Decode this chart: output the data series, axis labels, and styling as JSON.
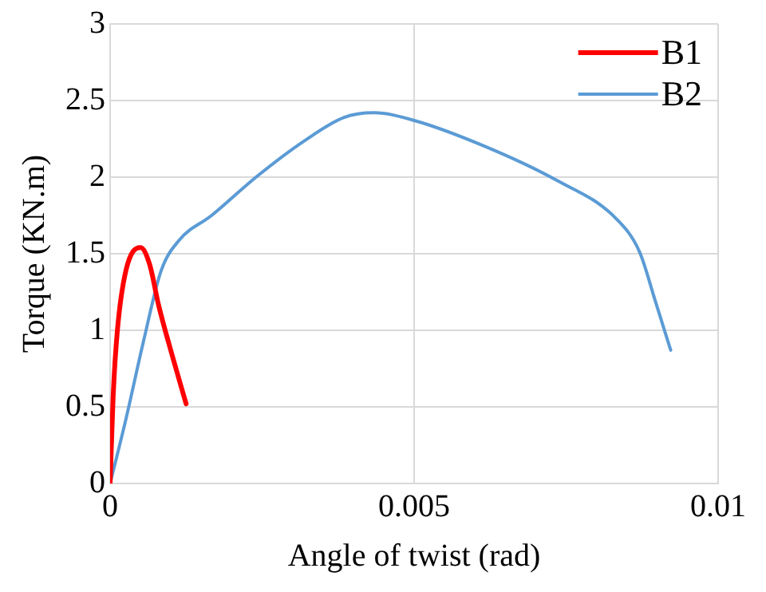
{
  "chart_data": {
    "type": "line",
    "xlabel": "Angle of twist (rad)",
    "ylabel": "Torque (KN.m)",
    "xlim": [
      0,
      0.01
    ],
    "xticks": [
      0,
      0.005,
      0.01
    ],
    "ylim": [
      0,
      3
    ],
    "yticks": [
      0,
      0.5,
      1,
      1.5,
      2,
      2.5,
      3
    ],
    "grid": true,
    "legend": "top right",
    "marker": "none",
    "line_style": "solid",
    "series": [
      {
        "name": "B1",
        "color": "#ff0000",
        "x": [
          0,
          5e-05,
          0.00012,
          0.00026,
          0.0005,
          0.00065,
          0.0008,
          0.00104,
          0.00125
        ],
        "values": [
          0,
          0.57,
          1.0,
          1.39,
          1.54,
          1.43,
          1.16,
          0.81,
          0.52
        ]
      },
      {
        "name": "B2",
        "color": "#5b9bd5",
        "x": [
          0,
          0.00026,
          0.00055,
          0.00084,
          0.00114,
          0.00167,
          0.0024,
          0.00317,
          0.00385,
          0.00434,
          0.005,
          0.00617,
          0.00734,
          0.00832,
          0.00871,
          0.00896,
          0.00922
        ],
        "values": [
          0,
          0.42,
          0.93,
          1.39,
          1.59,
          1.75,
          2.0,
          2.23,
          2.39,
          2.42,
          2.37,
          2.2,
          1.98,
          1.73,
          1.51,
          1.2,
          0.87
        ]
      }
    ]
  }
}
